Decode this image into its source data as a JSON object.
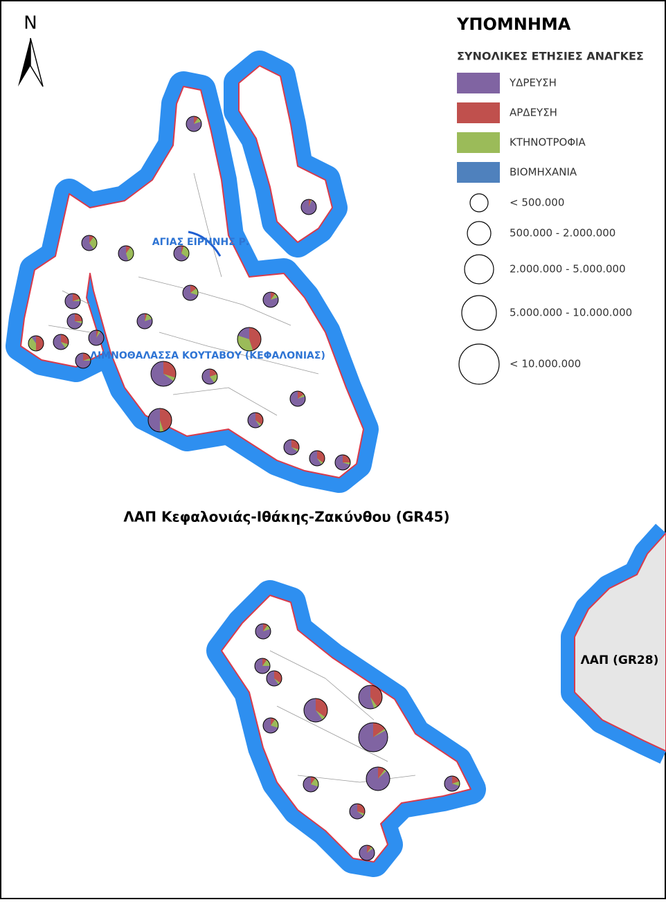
{
  "north_arrow": "N",
  "legend": {
    "title": "ΥΠΟΜΝΗΜΑ",
    "subtitle": "ΣΥΝΟΛΙΚΕΣ ΕΤΗΣΙΕΣ ΑΝΑΓΚΕΣ",
    "categories": [
      {
        "label": "ΥΔΡΕΥΣΗ",
        "color": "#8064a2"
      },
      {
        "label": "ΑΡΔΕΥΣΗ",
        "color": "#c0504d"
      },
      {
        "label": "ΚΤΗΝΟΤΡΟΦΙΑ",
        "color": "#9bbb59"
      },
      {
        "label": "ΒΙΟΜΗΧΑΝΙΑ",
        "color": "#4f81bd"
      }
    ],
    "size_classes": [
      "< 500.000",
      "500.000 - 2.000.000",
      "2.000.000 - 5.000.000",
      "5.000.000 - 10.000.000",
      "< 10.000.000"
    ]
  },
  "map_labels": {
    "river": "ΑΓΙΑΣ ΕΙΡΗΝΗΣ Ρ.",
    "lagoon": "ΛΙΜΝΟΘΑΛΑΣΣΑ ΚΟΥΤΑΒΟΥ (ΚΕΦΑΛΟΝΙΑΣ)",
    "district": "ΛΑΠ Κεφαλονιάς-Ιθάκης-Ζακύνθου (GR45)",
    "neighbor": "ΛΑΠ  (GR28)"
  }
}
